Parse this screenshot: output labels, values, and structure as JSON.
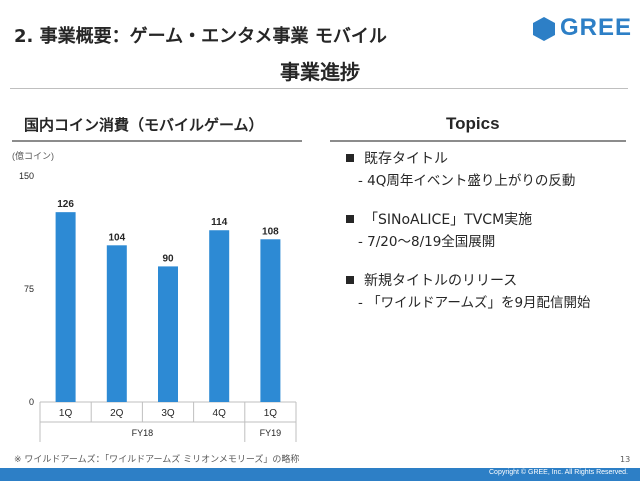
{
  "header": {
    "title": "2. 事業概要：ゲーム・エンタメ事業 モバイル",
    "logo": "GREE",
    "subtitle": "事業進捗",
    "brand_color": "#2d7fc6"
  },
  "left_panel": {
    "title": "国内コイン消費（モバイルゲーム）"
  },
  "chart_data": {
    "type": "bar",
    "ylabel": "(億コイン)",
    "ylim": [
      0,
      150
    ],
    "yticks": [
      0,
      75,
      150
    ],
    "categories": [
      "1Q",
      "2Q",
      "3Q",
      "4Q",
      "1Q"
    ],
    "groups": [
      {
        "label": "FY18",
        "count": 4
      },
      {
        "label": "FY19",
        "count": 1
      }
    ],
    "values": [
      126,
      104,
      90,
      114,
      108
    ],
    "bar_color": "#2d8ad4",
    "grid": false
  },
  "right_panel": {
    "title": "Topics",
    "topics": [
      {
        "head": "既存タイトル",
        "sub": "- 4Q周年イベント盛り上がりの反動"
      },
      {
        "head": "「SINoALICE」TVCM実施",
        "sub": "- 7/20～8/19全国展開"
      },
      {
        "head": "新規タイトルのリリース",
        "sub": "- 「ワイルドアームズ」を9月配信開始"
      }
    ]
  },
  "footer": {
    "footnote": "※ ワイルドアームズ：「ワイルドアームズ ミリオンメモリーズ」の略称",
    "page_number": "13",
    "copyright": "Copyright © GREE, Inc. All Rights Reserved."
  }
}
